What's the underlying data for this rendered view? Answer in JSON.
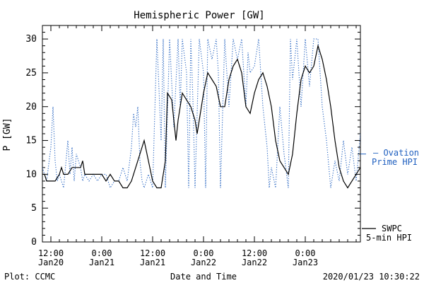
{
  "chart_data": {
    "type": "line",
    "title": "Hemispheric Power [GW]",
    "xlabel": "Date and Time",
    "ylabel": "P [GW]",
    "ylim": [
      0,
      32
    ],
    "yticks": [
      0,
      5,
      10,
      15,
      20,
      25,
      30
    ],
    "xlim": [
      "2020-01-20 10:00",
      "2020-01-23 13:00"
    ],
    "xticks": [
      {
        "t": "2020-01-20 12:00",
        "line1": "12:00",
        "line2": "Jan20"
      },
      {
        "t": "2020-01-21 00:00",
        "line1": "0:00",
        "line2": "Jan21"
      },
      {
        "t": "2020-01-21 12:00",
        "line1": "12:00",
        "line2": "Jan21"
      },
      {
        "t": "2020-01-22 00:00",
        "line1": "0:00",
        "line2": "Jan22"
      },
      {
        "t": "2020-01-22 12:00",
        "line1": "12:00",
        "line2": "Jan22"
      },
      {
        "t": "2020-01-23 00:00",
        "line1": "0:00",
        "line2": "Jan23"
      }
    ],
    "grid": false,
    "series": [
      {
        "name": "SWPC 5-min HPI",
        "color": "#000000",
        "style": "solid",
        "points": [
          [
            "2020-01-20 10:00",
            10
          ],
          [
            "2020-01-20 10:30",
            10
          ],
          [
            "2020-01-20 11:00",
            9
          ],
          [
            "2020-01-20 12:00",
            9
          ],
          [
            "2020-01-20 13:00",
            9
          ],
          [
            "2020-01-20 14:00",
            10
          ],
          [
            "2020-01-20 14:30",
            11
          ],
          [
            "2020-01-20 15:00",
            10
          ],
          [
            "2020-01-20 16:00",
            10
          ],
          [
            "2020-01-20 17:00",
            11
          ],
          [
            "2020-01-20 18:00",
            11
          ],
          [
            "2020-01-20 19:00",
            11
          ],
          [
            "2020-01-20 19:30",
            12
          ],
          [
            "2020-01-20 20:00",
            10
          ],
          [
            "2020-01-20 22:00",
            10
          ],
          [
            "2020-01-21 00:00",
            10
          ],
          [
            "2020-01-21 01:00",
            9
          ],
          [
            "2020-01-21 02:00",
            10
          ],
          [
            "2020-01-21 03:00",
            9
          ],
          [
            "2020-01-21 04:00",
            9
          ],
          [
            "2020-01-21 05:00",
            8
          ],
          [
            "2020-01-21 06:00",
            8
          ],
          [
            "2020-01-21 07:00",
            9
          ],
          [
            "2020-01-21 08:00",
            11
          ],
          [
            "2020-01-21 09:00",
            13
          ],
          [
            "2020-01-21 09:30",
            14
          ],
          [
            "2020-01-21 10:00",
            15
          ],
          [
            "2020-01-21 11:00",
            12
          ],
          [
            "2020-01-21 12:00",
            9
          ],
          [
            "2020-01-21 13:00",
            8
          ],
          [
            "2020-01-21 14:00",
            8
          ],
          [
            "2020-01-21 15:00",
            12
          ],
          [
            "2020-01-21 15:30",
            22
          ],
          [
            "2020-01-21 16:30",
            21
          ],
          [
            "2020-01-21 17:00",
            18
          ],
          [
            "2020-01-21 17:30",
            15
          ],
          [
            "2020-01-21 18:00",
            18
          ],
          [
            "2020-01-21 18:30",
            20
          ],
          [
            "2020-01-21 19:00",
            22
          ],
          [
            "2020-01-21 20:00",
            21
          ],
          [
            "2020-01-21 21:00",
            20
          ],
          [
            "2020-01-21 22:00",
            18
          ],
          [
            "2020-01-21 22:30",
            16
          ],
          [
            "2020-01-21 23:00",
            18
          ],
          [
            "2020-01-22 00:00",
            22
          ],
          [
            "2020-01-22 01:00",
            25
          ],
          [
            "2020-01-22 02:00",
            24
          ],
          [
            "2020-01-22 03:00",
            23
          ],
          [
            "2020-01-22 04:00",
            20
          ],
          [
            "2020-01-22 05:00",
            20
          ],
          [
            "2020-01-22 06:00",
            24
          ],
          [
            "2020-01-22 07:00",
            26
          ],
          [
            "2020-01-22 08:00",
            27
          ],
          [
            "2020-01-22 09:00",
            25
          ],
          [
            "2020-01-22 10:00",
            20
          ],
          [
            "2020-01-22 11:00",
            19
          ],
          [
            "2020-01-22 12:00",
            22
          ],
          [
            "2020-01-22 13:00",
            24
          ],
          [
            "2020-01-22 14:00",
            25
          ],
          [
            "2020-01-22 15:00",
            23
          ],
          [
            "2020-01-22 16:00",
            20
          ],
          [
            "2020-01-22 17:00",
            15
          ],
          [
            "2020-01-22 18:00",
            12
          ],
          [
            "2020-01-22 19:00",
            11
          ],
          [
            "2020-01-22 20:00",
            10
          ],
          [
            "2020-01-22 21:00",
            13
          ],
          [
            "2020-01-22 22:00",
            19
          ],
          [
            "2020-01-22 23:00",
            24
          ],
          [
            "2020-01-23 00:00",
            26
          ],
          [
            "2020-01-23 01:00",
            25
          ],
          [
            "2020-01-23 02:00",
            26
          ],
          [
            "2020-01-23 03:00",
            29
          ],
          [
            "2020-01-23 04:00",
            27
          ],
          [
            "2020-01-23 05:00",
            24
          ],
          [
            "2020-01-23 06:00",
            20
          ],
          [
            "2020-01-23 07:00",
            15
          ],
          [
            "2020-01-23 08:00",
            11
          ],
          [
            "2020-01-23 09:00",
            9
          ],
          [
            "2020-01-23 10:00",
            8
          ],
          [
            "2020-01-23 11:00",
            9
          ],
          [
            "2020-01-23 12:00",
            10
          ],
          [
            "2020-01-23 13:00",
            11
          ]
        ]
      },
      {
        "name": "Ovation Prime HPI",
        "color": "#1f5fbf",
        "style": "dotted",
        "points": [
          [
            "2020-01-20 10:00",
            11
          ],
          [
            "2020-01-20 11:00",
            9
          ],
          [
            "2020-01-20 12:00",
            14
          ],
          [
            "2020-01-20 12:30",
            20
          ],
          [
            "2020-01-20 13:00",
            12
          ],
          [
            "2020-01-20 13:30",
            9
          ],
          [
            "2020-01-20 14:00",
            10
          ],
          [
            "2020-01-20 15:00",
            8
          ],
          [
            "2020-01-20 16:00",
            15
          ],
          [
            "2020-01-20 16:30",
            10
          ],
          [
            "2020-01-20 17:00",
            14
          ],
          [
            "2020-01-20 17:30",
            9
          ],
          [
            "2020-01-20 18:00",
            13
          ],
          [
            "2020-01-20 19:00",
            11
          ],
          [
            "2020-01-20 19:30",
            9
          ],
          [
            "2020-01-20 20:00",
            10
          ],
          [
            "2020-01-20 21:00",
            9
          ],
          [
            "2020-01-20 22:00",
            10
          ],
          [
            "2020-01-20 23:00",
            9
          ],
          [
            "2020-01-21 00:00",
            10
          ],
          [
            "2020-01-21 01:00",
            10
          ],
          [
            "2020-01-21 02:00",
            8
          ],
          [
            "2020-01-21 03:00",
            9
          ],
          [
            "2020-01-21 04:00",
            9
          ],
          [
            "2020-01-21 05:00",
            11
          ],
          [
            "2020-01-21 06:00",
            9
          ],
          [
            "2020-01-21 07:00",
            14
          ],
          [
            "2020-01-21 07:30",
            19
          ],
          [
            "2020-01-21 08:00",
            17
          ],
          [
            "2020-01-21 08:30",
            20
          ],
          [
            "2020-01-21 09:00",
            12
          ],
          [
            "2020-01-21 09:30",
            9
          ],
          [
            "2020-01-21 10:00",
            8
          ],
          [
            "2020-01-21 11:00",
            10
          ],
          [
            "2020-01-21 11:30",
            9
          ],
          [
            "2020-01-21 12:00",
            8
          ],
          [
            "2020-01-21 13:00",
            30
          ],
          [
            "2020-01-21 14:00",
            15
          ],
          [
            "2020-01-21 14:30",
            30
          ],
          [
            "2020-01-21 15:00",
            8
          ],
          [
            "2020-01-21 16:00",
            30
          ],
          [
            "2020-01-21 17:00",
            17
          ],
          [
            "2020-01-21 18:00",
            30
          ],
          [
            "2020-01-21 18:30",
            20
          ],
          [
            "2020-01-21 19:00",
            30
          ],
          [
            "2020-01-21 20:00",
            25
          ],
          [
            "2020-01-21 20:30",
            8
          ],
          [
            "2020-01-21 21:00",
            30
          ],
          [
            "2020-01-21 21:30",
            21
          ],
          [
            "2020-01-21 22:00",
            8
          ],
          [
            "2020-01-21 23:00",
            30
          ],
          [
            "2020-01-22 00:00",
            25
          ],
          [
            "2020-01-22 00:30",
            8
          ],
          [
            "2020-01-22 01:00",
            30
          ],
          [
            "2020-01-22 02:00",
            27
          ],
          [
            "2020-01-22 03:00",
            30
          ],
          [
            "2020-01-22 03:30",
            25
          ],
          [
            "2020-01-22 04:00",
            8
          ],
          [
            "2020-01-22 05:00",
            30
          ],
          [
            "2020-01-22 06:00",
            20
          ],
          [
            "2020-01-22 07:00",
            30
          ],
          [
            "2020-01-22 08:00",
            27
          ],
          [
            "2020-01-22 09:00",
            30
          ],
          [
            "2020-01-22 10:00",
            20
          ],
          [
            "2020-01-22 10:30",
            28
          ],
          [
            "2020-01-22 11:00",
            25
          ],
          [
            "2020-01-22 12:00",
            26
          ],
          [
            "2020-01-22 13:00",
            30
          ],
          [
            "2020-01-22 14:00",
            20
          ],
          [
            "2020-01-22 15:00",
            14
          ],
          [
            "2020-01-22 15:30",
            8
          ],
          [
            "2020-01-22 16:00",
            11
          ],
          [
            "2020-01-22 17:00",
            8
          ],
          [
            "2020-01-22 18:00",
            20
          ],
          [
            "2020-01-22 19:00",
            13
          ],
          [
            "2020-01-22 20:00",
            8
          ],
          [
            "2020-01-22 20:30",
            30
          ],
          [
            "2020-01-22 21:00",
            24
          ],
          [
            "2020-01-22 22:00",
            30
          ],
          [
            "2020-01-22 23:00",
            20
          ],
          [
            "2020-01-23 00:00",
            30
          ],
          [
            "2020-01-23 01:00",
            23
          ],
          [
            "2020-01-23 02:00",
            30
          ],
          [
            "2020-01-23 03:00",
            30
          ],
          [
            "2020-01-23 04:00",
            20
          ],
          [
            "2020-01-23 05:00",
            15
          ],
          [
            "2020-01-23 06:00",
            8
          ],
          [
            "2020-01-23 07:00",
            12
          ],
          [
            "2020-01-23 08:00",
            9
          ],
          [
            "2020-01-23 09:00",
            15
          ],
          [
            "2020-01-23 10:00",
            10
          ],
          [
            "2020-01-23 11:00",
            14
          ],
          [
            "2020-01-23 12:00",
            9
          ],
          [
            "2020-01-23 13:00",
            16
          ]
        ]
      }
    ]
  },
  "legend": {
    "ovation_line1": "– Ovation",
    "ovation_line2": "Prime HPI",
    "swpc_line1": "SWPC",
    "swpc_line2": "5-min HPI"
  },
  "footer": {
    "left": "Plot: CCMC",
    "center": "Date and Time",
    "right": "2020/01/23 10:30:22"
  },
  "colors": {
    "axis": "#000000",
    "swpc": "#000000",
    "ovation": "#1f5fbf"
  }
}
